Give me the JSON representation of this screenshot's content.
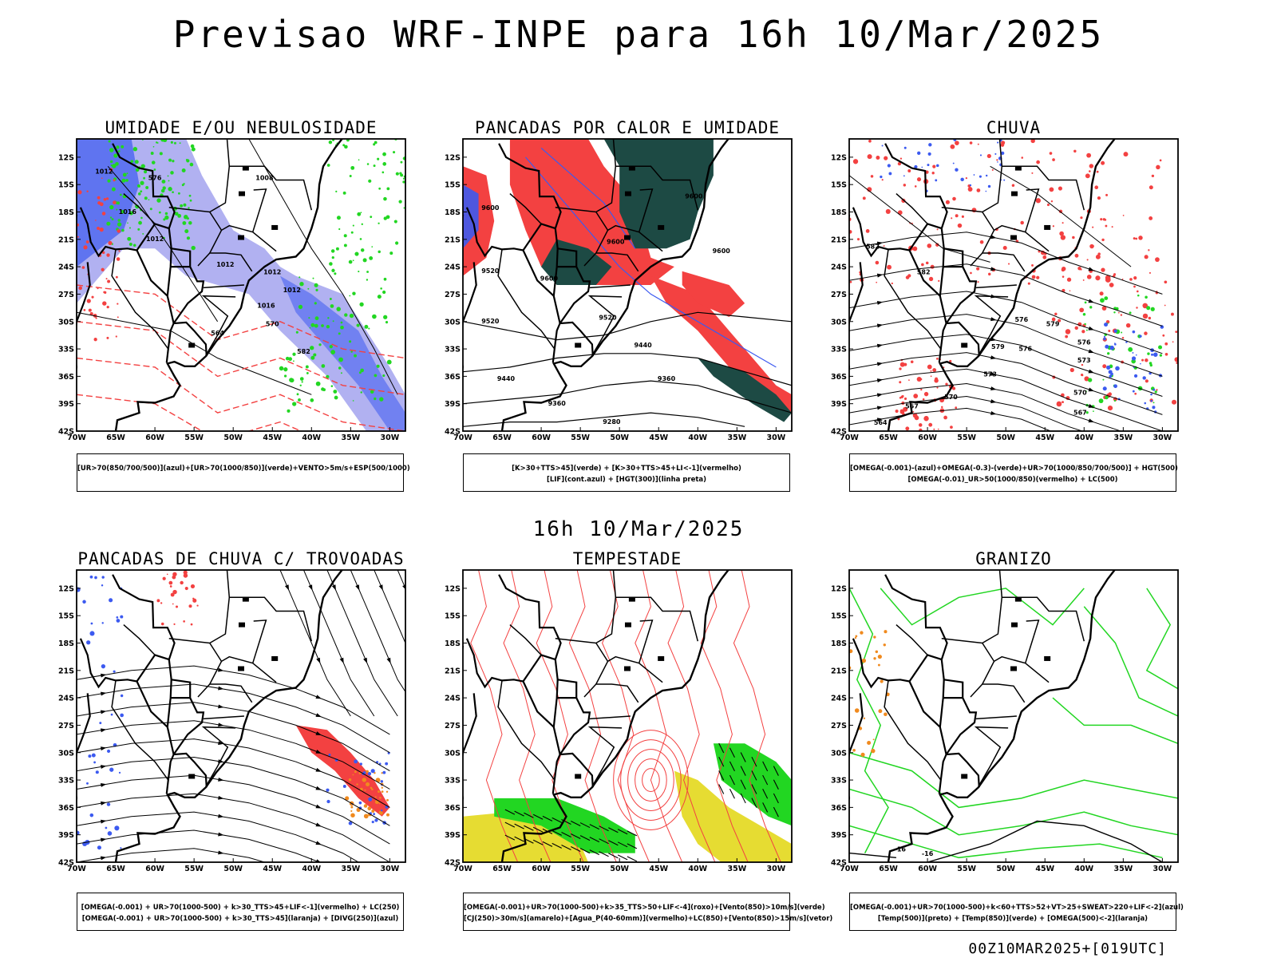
{
  "title": "Previsao WRF-INPE  para 16h 10/Mar/2025",
  "middle_time": "16h 10/Mar/2025",
  "run_info": "00Z10MAR2025+[019UTC]",
  "axes": {
    "lat_ticks": [
      "12S",
      "15S",
      "18S",
      "21S",
      "24S",
      "27S",
      "30S",
      "33S",
      "36S",
      "39S",
      "42S"
    ],
    "lon_ticks": [
      "70W",
      "65W",
      "60W",
      "55W",
      "50W",
      "45W",
      "40W",
      "35W",
      "30W"
    ]
  },
  "colors": {
    "red": "#f34141",
    "blue": "#3c5af0",
    "green": "#22d622",
    "lavender": "#a8a8f0",
    "darkteal": "#1d4a44",
    "yellow": "#e6dc32",
    "orange": "#f08a1e"
  },
  "panels": [
    {
      "title": "UMIDADE E/OU NEBULOSIDADE",
      "caption": [
        "[UR>70(850/700/500)](azul)+[UR>70(1000/850)](verde)+VENTO>5m/s+ESP(500/1000)"
      ],
      "contour_labels": [
        "1012",
        "1012",
        "1016",
        "1012",
        "1012",
        "1016",
        "1012",
        "1008",
        "576",
        "570",
        "564",
        "582"
      ]
    },
    {
      "title": "PANCADAS POR CALOR E UMIDADE",
      "caption": [
        "[K>30+TTS>45](verde) + [K>30+TTS>45+LI<-1](vermelho)",
        "[LIF](cont.azul) + [HGT(300)](linha preta)"
      ],
      "contour_labels": [
        "9600",
        "9600",
        "9600",
        "9520",
        "9600",
        "9520",
        "9600",
        "9520",
        "9440",
        "9440",
        "9360",
        "9360",
        "9280"
      ]
    },
    {
      "title": "CHUVA",
      "caption": [
        "[OMEGA(-0.001)-(azul)+OMEGA(-0.3)-(verde)+UR>70(1000/850/700/500)] + HGT(500)",
        "[OMEGA(-0.01)_UR>50(1000/850)(vermelho) + LC(500)"
      ],
      "contour_labels": [
        "582",
        "582",
        "579",
        "579",
        "576",
        "576",
        "573",
        "573",
        "570",
        "570",
        "567",
        "567",
        "564",
        "576"
      ]
    },
    {
      "title": "PANCADAS DE CHUVA C/ TROVOADAS",
      "caption": [
        "[OMEGA(-0.001) + UR>70(1000-500) + k>30_TTS>45+LIF<-1](vermelho) + LC(250)",
        "[OMEGA(-0.001) + UR>70(1000-500) + k>30_TTS>45](laranja) + [DIVG(250)](azul)"
      ],
      "contour_labels": []
    },
    {
      "title": "TEMPESTADE",
      "caption": [
        "[OMEGA(-0.001)+UR>70(1000-500)+k>35_TTS>50+LIF<-4](roxo)+[Vento(850)>10m/s](verde)",
        "[CJ(250)>30m/s](amarelo)+[Agua_P(40-60mm)](vermelho)+LC(850)+[Vento(850)>15m/s](vetor)"
      ],
      "contour_labels": []
    },
    {
      "title": "GRANIZO",
      "caption": [
        "[OMEGA(-0.001)+UR>70(1000-500)+k<60+TTS>52+VT>25+SWEAT>220+LIF<-2](azul)",
        "[Temp(500)](preto) + [Temp(850)](verde) + [OMEGA(500)<-2](laranja)"
      ],
      "contour_labels": [
        "-16",
        "-16"
      ]
    }
  ]
}
